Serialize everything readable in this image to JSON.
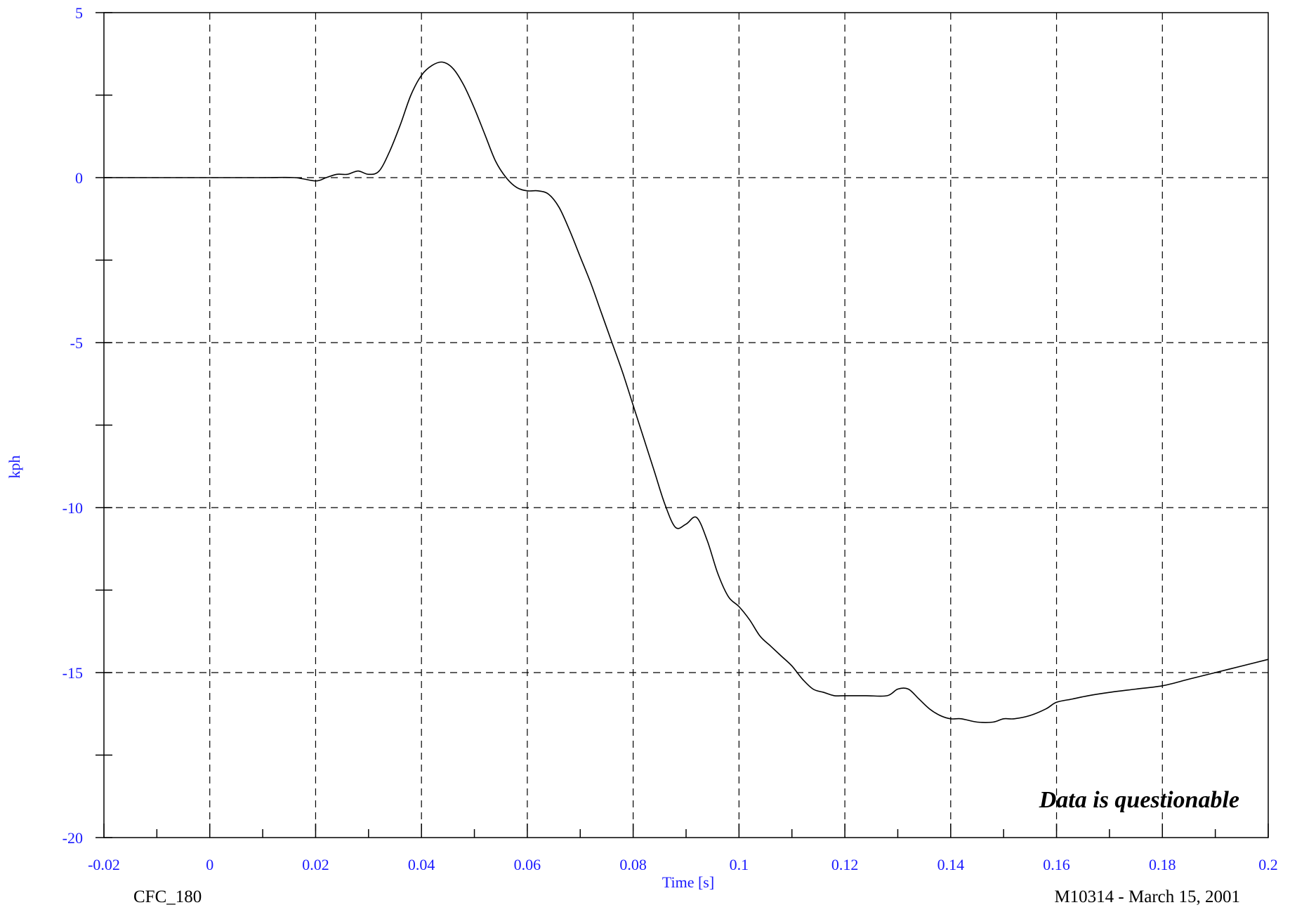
{
  "chart_data": {
    "type": "line",
    "title": "",
    "xlabel": "Time [s]",
    "ylabel": "kph",
    "xlim": [
      -0.02,
      0.2
    ],
    "ylim": [
      -20,
      5
    ],
    "grid": true,
    "legend": "none",
    "x_ticks": [
      -0.02,
      0,
      0.02,
      0.04,
      0.06,
      0.08,
      0.1,
      0.12,
      0.14,
      0.16,
      0.18,
      0.2
    ],
    "x_tick_labels": [
      "-0.02",
      "0",
      "0.02",
      "0.04",
      "0.06",
      "0.08",
      "0.1",
      "0.12",
      "0.14",
      "0.16",
      "0.18",
      "0.2"
    ],
    "y_ticks": [
      5,
      0,
      -5,
      -10,
      -15,
      -20
    ],
    "y_tick_labels": [
      "5",
      "0",
      "-5",
      "-10",
      "-15",
      "-20"
    ],
    "series": [
      {
        "color": "#000000",
        "x": [
          -0.02,
          -0.01,
          0,
          0.01,
          0.016,
          0.02,
          0.022,
          0.024,
          0.026,
          0.028,
          0.03,
          0.032,
          0.034,
          0.036,
          0.038,
          0.04,
          0.042,
          0.044,
          0.046,
          0.048,
          0.05,
          0.052,
          0.054,
          0.056,
          0.058,
          0.06,
          0.062,
          0.064,
          0.066,
          0.068,
          0.07,
          0.072,
          0.074,
          0.076,
          0.078,
          0.08,
          0.082,
          0.084,
          0.086,
          0.088,
          0.09,
          0.092,
          0.094,
          0.096,
          0.098,
          0.1,
          0.102,
          0.104,
          0.106,
          0.108,
          0.11,
          0.112,
          0.114,
          0.116,
          0.118,
          0.12,
          0.124,
          0.128,
          0.13,
          0.132,
          0.134,
          0.136,
          0.138,
          0.14,
          0.142,
          0.145,
          0.148,
          0.15,
          0.152,
          0.155,
          0.158,
          0.16,
          0.163,
          0.166,
          0.17,
          0.175,
          0.18,
          0.185,
          0.19,
          0.195,
          0.2
        ],
        "y": [
          0,
          0,
          0,
          0,
          0,
          -0.1,
          0,
          0.1,
          0.1,
          0.2,
          0.1,
          0.2,
          0.8,
          1.6,
          2.5,
          3.1,
          3.4,
          3.5,
          3.3,
          2.8,
          2.1,
          1.3,
          0.5,
          0,
          -0.3,
          -0.4,
          -0.4,
          -0.5,
          -0.9,
          -1.6,
          -2.4,
          -3.2,
          -4.1,
          -5.0,
          -5.9,
          -6.9,
          -7.9,
          -8.9,
          -9.9,
          -10.6,
          -10.5,
          -10.3,
          -11.0,
          -12.0,
          -12.7,
          -13.0,
          -13.4,
          -13.9,
          -14.2,
          -14.5,
          -14.8,
          -15.2,
          -15.5,
          -15.6,
          -15.7,
          -15.7,
          -15.7,
          -15.7,
          -15.5,
          -15.5,
          -15.8,
          -16.1,
          -16.3,
          -16.4,
          -16.4,
          -16.5,
          -16.5,
          -16.4,
          -16.4,
          -16.3,
          -16.1,
          -15.9,
          -15.8,
          -15.7,
          -15.6,
          -15.5,
          -15.4,
          -15.2,
          -15.0,
          -14.8,
          -14.6
        ]
      }
    ],
    "annotations": [
      "Data is questionable",
      "CFC_180",
      "M10314 - March 15, 2001"
    ]
  },
  "footer": {
    "left": "CFC_180",
    "right": "M10314 - March 15, 2001"
  },
  "note": "Data is questionable",
  "colors": {
    "labels": "#1a1aff",
    "line": "#000000",
    "grid": "#000000"
  }
}
